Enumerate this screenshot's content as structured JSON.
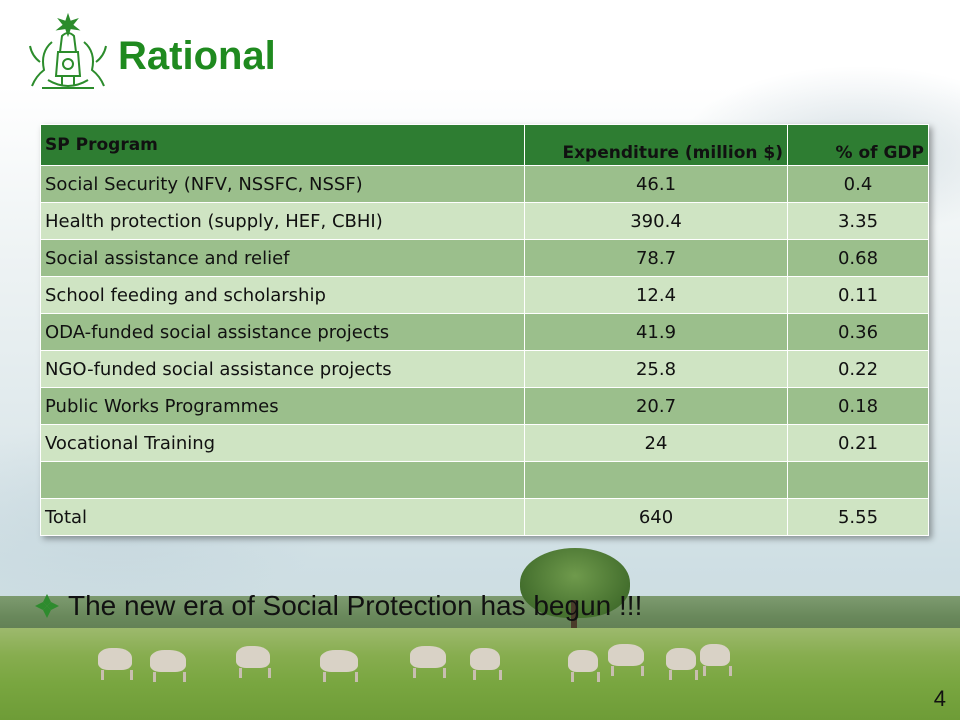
{
  "slide": {
    "title": "Rational",
    "bullet": "The new era of Social Protection  has begun !!!",
    "page_number": "4",
    "logo_icon": "royal-emblem-icon",
    "bullet_icon": "diamond-bullet-icon"
  },
  "table": {
    "headers": [
      "SP Program",
      "Expenditure (million $)",
      "% of GDP"
    ],
    "rows": [
      [
        "Social Security (NFV, NSSFC, NSSF)",
        "46.1",
        "0.4"
      ],
      [
        "Health protection (supply, HEF, CBHI)",
        "390.4",
        "3.35"
      ],
      [
        "Social assistance and relief",
        "78.7",
        "0.68"
      ],
      [
        "School feeding and scholarship",
        "12.4",
        "0.11"
      ],
      [
        "ODA-funded social assistance projects",
        "41.9",
        "0.36"
      ],
      [
        "NGO-funded social assistance projects",
        "25.8",
        "0.22"
      ],
      [
        "Public Works Programmes",
        "20.7",
        "0.18"
      ],
      [
        "Vocational Training",
        "24",
        "0.21"
      ],
      [
        "",
        "",
        ""
      ],
      [
        "Total",
        "640",
        "5.55"
      ]
    ]
  },
  "colors": {
    "title": "#1f8a1f",
    "header_bg": "#2e7d32",
    "row_dark": "#9bbf8c",
    "row_light": "#cfe4c3"
  }
}
